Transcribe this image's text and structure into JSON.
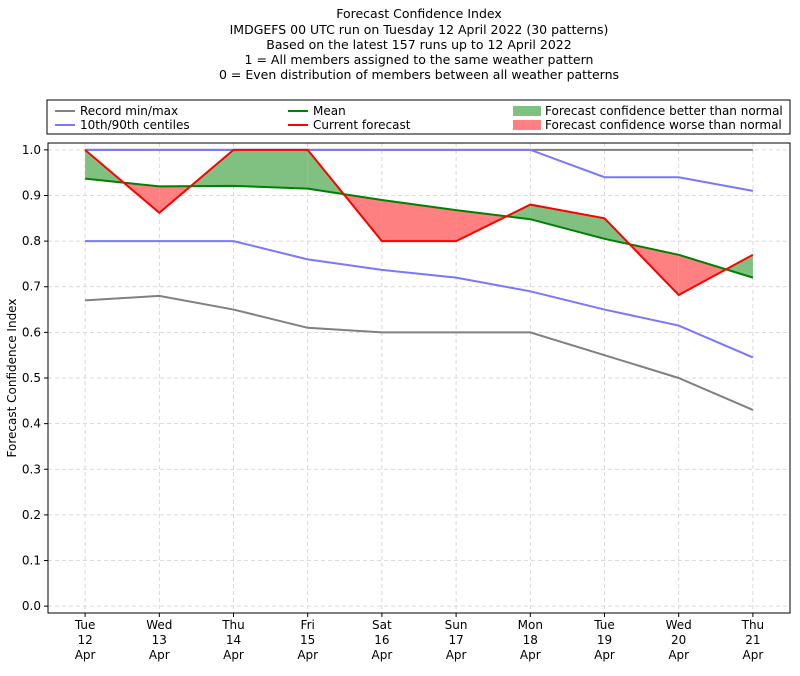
{
  "chart_data": {
    "type": "line",
    "title": "Forecast Confidence Index",
    "subtitle": [
      "IMDGEFS 00 UTC run on Tuesday 12 April 2022 (30 patterns)",
      "Based on the latest 157 runs up to 12 April 2022",
      "1 = All members assigned to the same weather pattern",
      "0 = Even distribution of members between all weather patterns"
    ],
    "y_label": "Forecast Confidence Index",
    "categories": [
      "Tue\n12\nApr",
      "Wed\n13\nApr",
      "Thu\n14\nApr",
      "Fri\n15\nApr",
      "Sat\n16\nApr",
      "Sun\n17\nApr",
      "Mon\n18\nApr",
      "Tue\n19\nApr",
      "Wed\n20\nApr",
      "Thu\n21\nApr"
    ],
    "ylim": [
      -0.015,
      1.015
    ],
    "yticks": [
      {
        "value": 0,
        "label": "0.0"
      },
      0.1,
      0.2,
      0.3,
      0.4,
      0.5,
      0.6,
      0.7,
      0.8,
      0.9,
      {
        "value": 1,
        "label": "1.0"
      }
    ],
    "grid": true,
    "bands": [
      {
        "name": "Record min/max",
        "color": "#808080",
        "max": [
          1,
          1,
          1,
          1,
          1,
          1,
          1,
          1,
          1,
          1
        ],
        "min": [
          0.67,
          0.68,
          0.65,
          0.61,
          0.6,
          0.6,
          0.6,
          0.55,
          0.5,
          0.43
        ]
      },
      {
        "name": "10th/90th centiles",
        "color": "#7777ff",
        "max": [
          1,
          1,
          1,
          1,
          1,
          1,
          1,
          0.94,
          0.94,
          0.91
        ],
        "min": [
          0.8,
          0.8,
          0.8,
          0.76,
          0.737,
          0.72,
          0.69,
          0.65,
          0.615,
          0.545
        ]
      }
    ],
    "series": [
      {
        "name": "Mean",
        "color": "#008000",
        "values": [
          0.937,
          0.92,
          0.921,
          0.915,
          0.89,
          0.868,
          0.848,
          0.805,
          0.77,
          0.72
        ]
      },
      {
        "name": "Current forecast",
        "color": "#ff0000",
        "values": [
          1,
          0.862,
          1,
          1,
          0.8,
          0.8,
          0.88,
          0.85,
          0.682,
          0.77
        ]
      }
    ],
    "fills": [
      {
        "name": "Forecast confidence better than normal",
        "color": "#80c080"
      },
      {
        "name": "Forecast confidence worse than normal",
        "color": "#ff8080"
      }
    ]
  }
}
